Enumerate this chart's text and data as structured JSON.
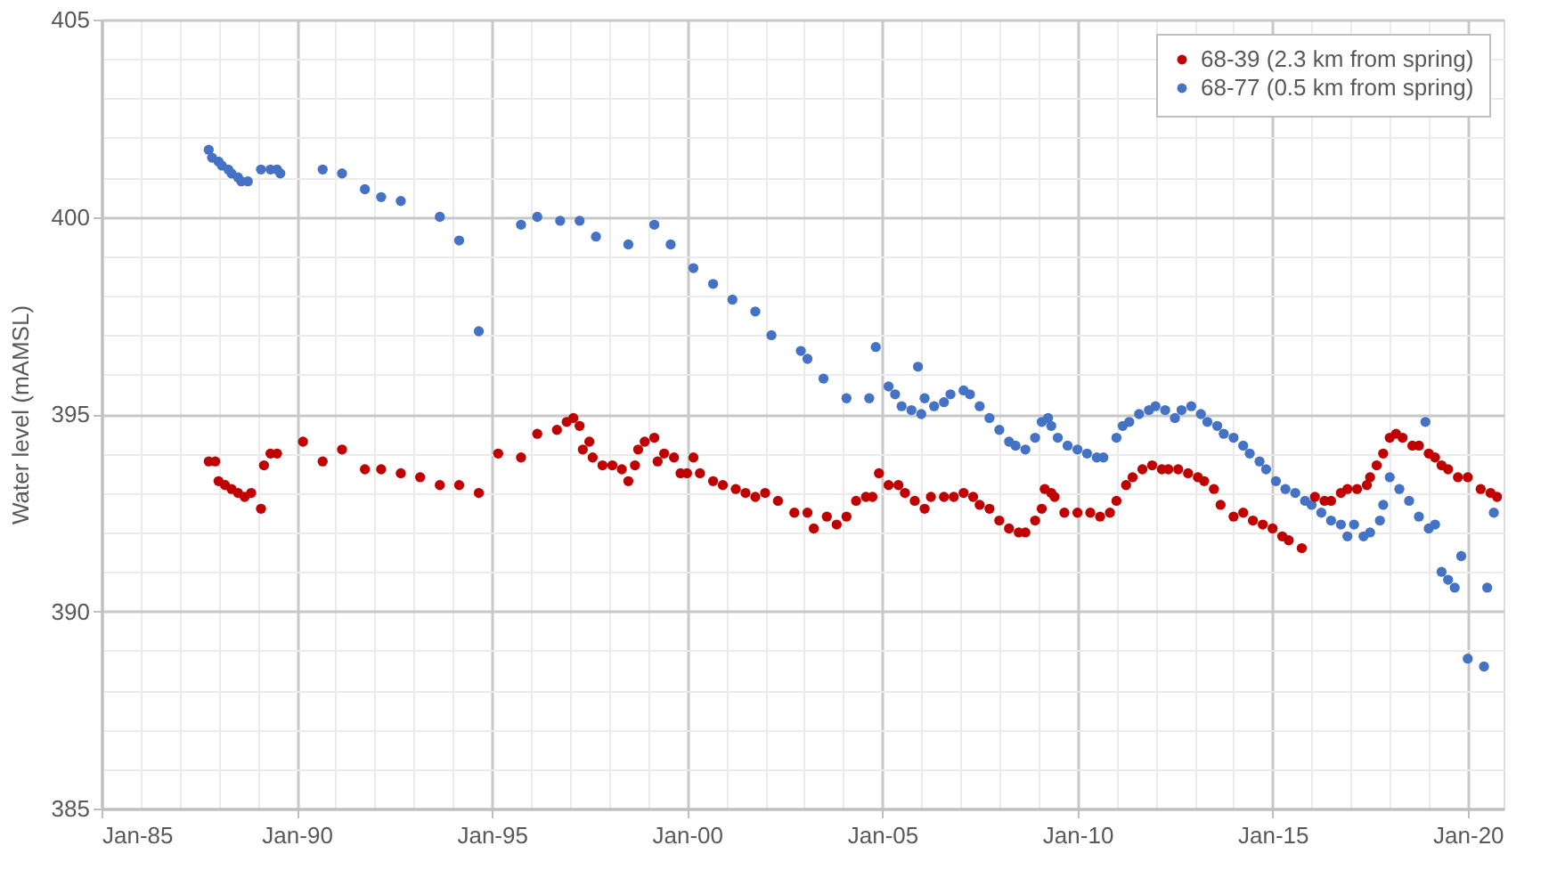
{
  "chart_data": {
    "type": "scatter",
    "ylabel": "Water level (mAMSL)",
    "xlim": [
      "1985-01",
      "2020-12"
    ],
    "ylim": [
      385,
      405
    ],
    "yticks": [
      385,
      {
        "value": 386,
        "label": null
      },
      {
        "value": 387,
        "label": null
      },
      {
        "value": 388,
        "label": null
      },
      {
        "value": 389,
        "label": null
      },
      390,
      {
        "value": 391,
        "label": null
      },
      {
        "value": 392,
        "label": null
      },
      {
        "value": 393,
        "label": null
      },
      {
        "value": 394,
        "label": null
      },
      395,
      {
        "value": 396,
        "label": null
      },
      {
        "value": 397,
        "label": null
      },
      {
        "value": 398,
        "label": null
      },
      {
        "value": 399,
        "label": null
      },
      400,
      {
        "value": 401,
        "label": null
      },
      {
        "value": 402,
        "label": null
      },
      {
        "value": 403,
        "label": null
      },
      {
        "value": 404,
        "label": null
      },
      405
    ],
    "xticks": [
      {
        "value": "1985-01",
        "label": "Jan-85"
      },
      {
        "value": "1986-01",
        "label": null
      },
      {
        "value": "1987-01",
        "label": null
      },
      {
        "value": "1988-01",
        "label": null
      },
      {
        "value": "1989-01",
        "label": null
      },
      {
        "value": "1990-01",
        "label": "Jan-90"
      },
      {
        "value": "1991-01",
        "label": null
      },
      {
        "value": "1992-01",
        "label": null
      },
      {
        "value": "1993-01",
        "label": null
      },
      {
        "value": "1994-01",
        "label": null
      },
      {
        "value": "1995-01",
        "label": "Jan-95"
      },
      {
        "value": "1996-01",
        "label": null
      },
      {
        "value": "1997-01",
        "label": null
      },
      {
        "value": "1998-01",
        "label": null
      },
      {
        "value": "1999-01",
        "label": null
      },
      {
        "value": "2000-01",
        "label": "Jan-00"
      },
      {
        "value": "2001-01",
        "label": null
      },
      {
        "value": "2002-01",
        "label": null
      },
      {
        "value": "2003-01",
        "label": null
      },
      {
        "value": "2004-01",
        "label": null
      },
      {
        "value": "2005-01",
        "label": "Jan-05"
      },
      {
        "value": "2006-01",
        "label": null
      },
      {
        "value": "2007-01",
        "label": null
      },
      {
        "value": "2008-01",
        "label": null
      },
      {
        "value": "2009-01",
        "label": null
      },
      {
        "value": "2010-01",
        "label": "Jan-10"
      },
      {
        "value": "2011-01",
        "label": null
      },
      {
        "value": "2012-01",
        "label": null
      },
      {
        "value": "2013-01",
        "label": null
      },
      {
        "value": "2014-01",
        "label": null
      },
      {
        "value": "2015-01",
        "label": "Jan-15"
      },
      {
        "value": "2016-01",
        "label": null
      },
      {
        "value": "2017-01",
        "label": null
      },
      {
        "value": "2018-01",
        "label": null
      },
      {
        "value": "2019-01",
        "label": null
      },
      {
        "value": "2020-01",
        "label": "Jan-20"
      }
    ],
    "grid": true,
    "legend": "top right",
    "marker": "circle",
    "series": [
      {
        "name": "68-39 (2.3 km from spring)",
        "color": "#c00000",
        "x": [
          "1987-10",
          "1987-12",
          "1988-01",
          "1988-03",
          "1988-05",
          "1988-07",
          "1988-09",
          "1988-11",
          "1989-02",
          "1989-03",
          "1989-05",
          "1989-07",
          "1990-03",
          "1990-09",
          "1991-03",
          "1991-10",
          "1992-03",
          "1992-09",
          "1993-03",
          "1993-09",
          "1994-03",
          "1994-09",
          "1995-03",
          "1995-10",
          "1996-03",
          "1996-09",
          "1996-12",
          "1997-02",
          "1997-04",
          "1997-05",
          "1997-07",
          "1997-08",
          "1997-11",
          "1998-02",
          "1998-05",
          "1998-07",
          "1998-09",
          "1998-10",
          "1998-12",
          "1999-03",
          "1999-04",
          "1999-06",
          "1999-09",
          "1999-11",
          "2000-01",
          "2000-03",
          "2000-05",
          "2000-09",
          "2000-12",
          "2001-04",
          "2001-07",
          "2001-10",
          "2002-01",
          "2002-05",
          "2002-10",
          "2003-02",
          "2003-04",
          "2003-08",
          "2003-11",
          "2004-02",
          "2004-05",
          "2004-08",
          "2004-10",
          "2004-12",
          "2005-03",
          "2005-06",
          "2005-08",
          "2005-11",
          "2006-02",
          "2006-04",
          "2006-08",
          "2006-11",
          "2007-02",
          "2007-05",
          "2007-07",
          "2007-10",
          "2008-01",
          "2008-04",
          "2008-07",
          "2008-09",
          "2008-12",
          "2009-02",
          "2009-03",
          "2009-05",
          "2009-06",
          "2009-09",
          "2010-01",
          "2010-05",
          "2010-08",
          "2010-11",
          "2011-01",
          "2011-04",
          "2011-06",
          "2011-09",
          "2011-12",
          "2012-03",
          "2012-05",
          "2012-08",
          "2012-11",
          "2013-02",
          "2013-04",
          "2013-07",
          "2013-09",
          "2014-01",
          "2014-04",
          "2014-07",
          "2014-10",
          "2015-01",
          "2015-04",
          "2015-06",
          "2015-10",
          "2016-02",
          "2016-05",
          "2016-07",
          "2016-10",
          "2016-12",
          "2017-03",
          "2017-06",
          "2017-07",
          "2017-09",
          "2017-11",
          "2018-01",
          "2018-03",
          "2018-05",
          "2018-08",
          "2018-10",
          "2019-01",
          "2019-03",
          "2019-05",
          "2019-07",
          "2019-10",
          "2020-01",
          "2020-05",
          "2020-08",
          "2020-10"
        ],
        "values": [
          393.8,
          393.8,
          393.3,
          393.2,
          393.1,
          393.0,
          392.9,
          393.0,
          392.6,
          393.7,
          394.0,
          394.0,
          394.3,
          393.8,
          394.1,
          393.6,
          393.6,
          393.5,
          393.4,
          393.2,
          393.2,
          393.0,
          394.0,
          393.9,
          394.5,
          394.6,
          394.8,
          394.9,
          394.7,
          394.1,
          394.3,
          393.9,
          393.7,
          393.7,
          393.6,
          393.3,
          393.7,
          394.1,
          394.3,
          394.4,
          393.8,
          394.0,
          393.9,
          393.5,
          393.5,
          393.9,
          393.5,
          393.3,
          393.2,
          393.1,
          393.0,
          392.9,
          393.0,
          392.8,
          392.5,
          392.5,
          392.1,
          392.4,
          392.2,
          392.4,
          392.8,
          392.9,
          392.9,
          393.5,
          393.2,
          393.2,
          393.0,
          392.8,
          392.6,
          392.9,
          392.9,
          392.9,
          393.0,
          392.9,
          392.7,
          392.6,
          392.3,
          392.1,
          392.0,
          392.0,
          392.3,
          392.6,
          393.1,
          393.0,
          392.9,
          392.5,
          392.5,
          392.5,
          392.4,
          392.5,
          392.8,
          393.2,
          393.4,
          393.6,
          393.7,
          393.6,
          393.6,
          393.6,
          393.5,
          393.4,
          393.3,
          393.1,
          392.7,
          392.4,
          392.5,
          392.3,
          392.2,
          392.1,
          391.9,
          391.8,
          391.6,
          392.9,
          392.8,
          392.8,
          393.0,
          393.1,
          393.1,
          393.2,
          393.4,
          393.7,
          394.0,
          394.4,
          394.5,
          394.4,
          394.2,
          394.2,
          394.0,
          393.9,
          393.7,
          393.6,
          393.4,
          393.4,
          393.1,
          393.0,
          392.9
        ]
      },
      {
        "name": "68-77 (0.5 km from spring)",
        "color": "#4472c4",
        "x": [
          "1987-10",
          "1987-11",
          "1988-01",
          "1988-02",
          "1988-04",
          "1988-05",
          "1988-07",
          "1988-08",
          "1988-10",
          "1989-02",
          "1989-05",
          "1989-07",
          "1989-08",
          "1990-09",
          "1991-03",
          "1991-10",
          "1992-03",
          "1992-09",
          "1993-09",
          "1994-03",
          "1994-09",
          "1995-10",
          "1996-03",
          "1996-10",
          "1997-04",
          "1997-09",
          "1998-07",
          "1999-03",
          "1999-08",
          "2000-03",
          "2000-09",
          "2001-03",
          "2001-10",
          "2002-03",
          "2002-12",
          "2003-02",
          "2003-07",
          "2004-02",
          "2004-09",
          "2004-11",
          "2005-03",
          "2005-05",
          "2005-07",
          "2005-10",
          "2005-12",
          "2006-01",
          "2006-02",
          "2006-05",
          "2006-08",
          "2006-10",
          "2007-02",
          "2007-04",
          "2007-07",
          "2007-10",
          "2008-01",
          "2008-04",
          "2008-06",
          "2008-09",
          "2008-12",
          "2009-02",
          "2009-04",
          "2009-05",
          "2009-07",
          "2009-10",
          "2010-01",
          "2010-04",
          "2010-07",
          "2010-09",
          "2011-01",
          "2011-03",
          "2011-05",
          "2011-08",
          "2011-11",
          "2012-01",
          "2012-04",
          "2012-07",
          "2012-09",
          "2012-12",
          "2013-03",
          "2013-05",
          "2013-08",
          "2013-10",
          "2014-01",
          "2014-04",
          "2014-06",
          "2014-09",
          "2014-11",
          "2015-02",
          "2015-05",
          "2015-08",
          "2015-11",
          "2016-01",
          "2016-04",
          "2016-07",
          "2016-10",
          "2016-12",
          "2017-02",
          "2017-05",
          "2017-07",
          "2017-10",
          "2017-11",
          "2018-01",
          "2018-04",
          "2018-07",
          "2018-10",
          "2018-12",
          "2019-01",
          "2019-03",
          "2019-05",
          "2019-07",
          "2019-09",
          "2019-11",
          "2020-01",
          "2020-06",
          "2020-07",
          "2020-09"
        ],
        "values": [
          401.7,
          401.5,
          401.4,
          401.3,
          401.2,
          401.1,
          401.0,
          400.9,
          400.9,
          401.2,
          401.2,
          401.2,
          401.1,
          401.2,
          401.1,
          400.7,
          400.5,
          400.4,
          400.0,
          399.4,
          397.1,
          399.8,
          400.0,
          399.9,
          399.9,
          399.5,
          399.3,
          399.8,
          399.3,
          398.7,
          398.3,
          397.9,
          397.6,
          397.0,
          396.6,
          396.4,
          395.9,
          395.4,
          395.4,
          396.7,
          395.7,
          395.5,
          395.2,
          395.1,
          396.2,
          395.0,
          395.4,
          395.2,
          395.3,
          395.5,
          395.6,
          395.5,
          395.2,
          394.9,
          394.6,
          394.3,
          394.2,
          394.1,
          394.4,
          394.8,
          394.9,
          394.7,
          394.4,
          394.2,
          394.1,
          394.0,
          393.9,
          393.9,
          394.4,
          394.7,
          394.8,
          395.0,
          395.1,
          395.2,
          395.1,
          394.9,
          395.1,
          395.2,
          395.0,
          394.8,
          394.7,
          394.5,
          394.4,
          394.2,
          394.0,
          393.8,
          393.6,
          393.3,
          393.1,
          393.0,
          392.8,
          392.7,
          392.5,
          392.3,
          392.2,
          391.9,
          392.2,
          391.9,
          392.0,
          392.3,
          392.7,
          393.4,
          393.1,
          392.8,
          392.4,
          394.8,
          392.1,
          392.2,
          391.0,
          390.8,
          390.6,
          391.4,
          388.8,
          388.6,
          390.6,
          392.5
        ]
      }
    ]
  }
}
